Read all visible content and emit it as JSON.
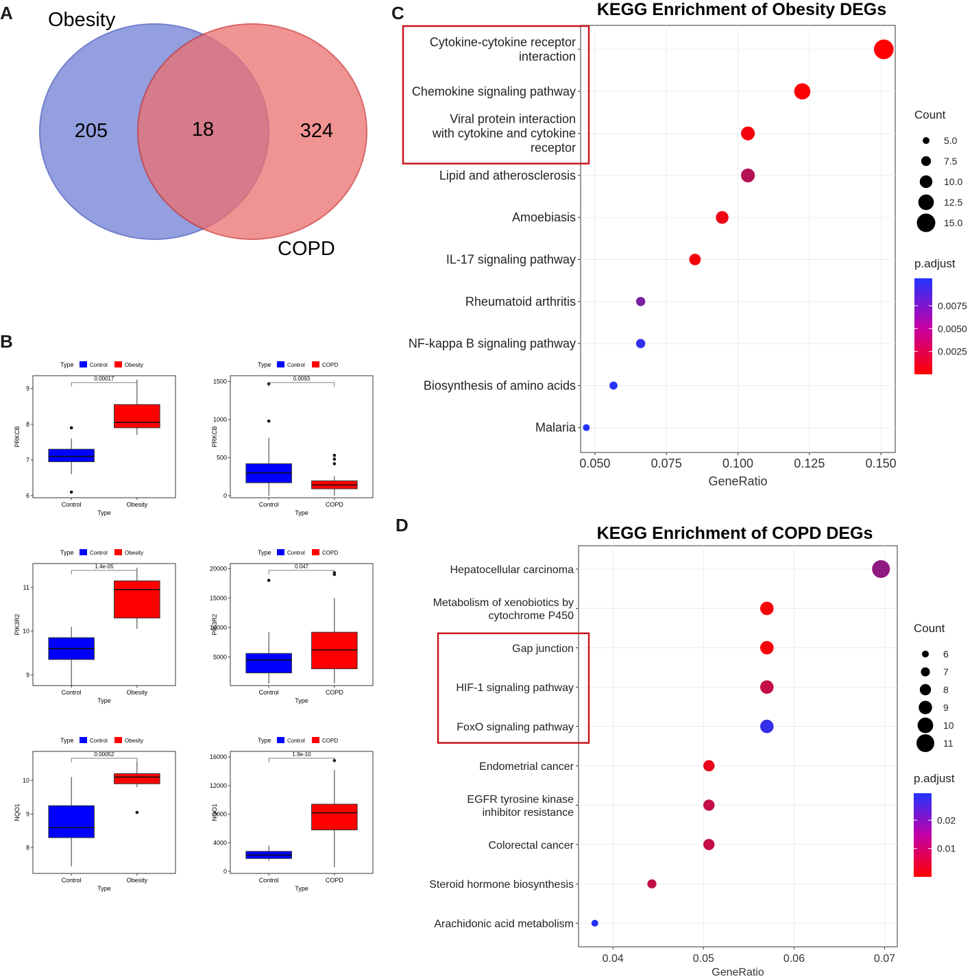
{
  "panels": {
    "A": "A",
    "B": "B",
    "C": "C",
    "D": "D"
  },
  "venn": {
    "labels": {
      "left": "Obesity",
      "right": "COPD"
    },
    "counts": {
      "left_only": "205",
      "overlap": "18",
      "right_only": "324"
    },
    "colors": {
      "left": "#6f7fd4",
      "right": "#ec6f6f"
    }
  },
  "boxplots": [
    {
      "gene": "PRKCB",
      "groups": [
        "Control",
        "Obesity"
      ],
      "xlabel": "Type",
      "legend_title": "Type",
      "legend_items": [
        "Control",
        "Obesity"
      ],
      "pvalue": "0.00017",
      "ylim": [
        6,
        9.3
      ],
      "ticks": [
        "6",
        "7",
        "8",
        "9"
      ],
      "tick_values": [
        6,
        7,
        8,
        9
      ],
      "boxes": [
        {
          "q1": 6.95,
          "med": 7.1,
          "q3": 7.3,
          "lo": 6.6,
          "hi": 7.6,
          "out": [
            7.9,
            6.1
          ]
        },
        {
          "q1": 7.9,
          "med": 8.05,
          "q3": 8.55,
          "lo": 7.7,
          "hi": 9.25,
          "out": []
        }
      ]
    },
    {
      "gene": "PRKCB",
      "groups": [
        "Control",
        "COPD"
      ],
      "xlabel": "Type",
      "legend_title": "Type",
      "legend_items": [
        "Control",
        "COPD"
      ],
      "pvalue": "0.0093",
      "ylim": [
        0,
        1550
      ],
      "ticks": [
        "0",
        "500",
        "1000",
        "1500"
      ],
      "tick_values": [
        0,
        500,
        1000,
        1500
      ],
      "boxes": [
        {
          "q1": 170,
          "med": 300,
          "q3": 420,
          "lo": 0,
          "hi": 760,
          "out": [
            980,
            1470
          ]
        },
        {
          "q1": 90,
          "med": 140,
          "q3": 195,
          "lo": 0,
          "hi": 260,
          "out": [
            420,
            480,
            530
          ]
        }
      ]
    },
    {
      "gene": "PIK3R2",
      "groups": [
        "Control",
        "Obesity"
      ],
      "xlabel": "Type",
      "legend_title": "Type",
      "legend_items": [
        "Control",
        "Obesity"
      ],
      "pvalue": "1.4e-05",
      "ylim": [
        8.8,
        11.5
      ],
      "ticks": [
        "9",
        "10",
        "11"
      ],
      "tick_values": [
        9,
        10,
        11
      ],
      "boxes": [
        {
          "q1": 9.35,
          "med": 9.6,
          "q3": 9.85,
          "lo": 8.75,
          "hi": 10.1,
          "out": []
        },
        {
          "q1": 10.3,
          "med": 10.95,
          "q3": 11.15,
          "lo": 10.05,
          "hi": 11.45,
          "out": []
        }
      ]
    },
    {
      "gene": "PIK3R2",
      "groups": [
        "Control",
        "COPD"
      ],
      "xlabel": "Type",
      "legend_title": "Type",
      "legend_items": [
        "Control",
        "COPD"
      ],
      "pvalue": "0.047",
      "ylim": [
        500,
        20500
      ],
      "ticks": [
        "5000",
        "10000",
        "15000",
        "20000"
      ],
      "tick_values": [
        5000,
        10000,
        15000,
        20000
      ],
      "boxes": [
        {
          "q1": 2300,
          "med": 4500,
          "q3": 5600,
          "lo": 500,
          "hi": 9200,
          "out": [
            18000
          ]
        },
        {
          "q1": 3000,
          "med": 6200,
          "q3": 9200,
          "lo": 500,
          "hi": 15000,
          "out": [
            19000,
            19300
          ]
        }
      ]
    },
    {
      "gene": "NQO1",
      "groups": [
        "Control",
        "Obesity"
      ],
      "xlabel": "Type",
      "legend_title": "Type",
      "legend_items": [
        "Control",
        "Obesity"
      ],
      "pvalue": "0.00052",
      "ylim": [
        7.3,
        10.8
      ],
      "ticks": [
        "8",
        "9",
        "10"
      ],
      "tick_values": [
        8,
        9,
        10
      ],
      "boxes": [
        {
          "q1": 8.3,
          "med": 8.6,
          "q3": 9.25,
          "lo": 7.45,
          "hi": 10.1,
          "out": []
        },
        {
          "q1": 9.9,
          "med": 10.1,
          "q3": 10.2,
          "lo": 9.8,
          "hi": 10.55,
          "out": [
            9.05
          ]
        }
      ]
    },
    {
      "gene": "NQO1",
      "groups": [
        "Control",
        "COPD"
      ],
      "xlabel": "Type",
      "legend_title": "Type",
      "legend_items": [
        "Control",
        "COPD"
      ],
      "pvalue": "1.9e-10",
      "ylim": [
        0,
        16500
      ],
      "ticks": [
        "0",
        "4000",
        "8000",
        "12000",
        "16000"
      ],
      "tick_values": [
        0,
        4000,
        8000,
        12000,
        16000
      ],
      "boxes": [
        {
          "q1": 1800,
          "med": 2300,
          "q3": 2800,
          "lo": 1500,
          "hi": 3600,
          "out": []
        },
        {
          "q1": 5800,
          "med": 8200,
          "q3": 9400,
          "lo": 600,
          "hi": 14200,
          "out": [
            15500
          ]
        }
      ]
    }
  ],
  "chart_data": [
    {
      "type": "scatter",
      "title": "KEGG Enrichment of Obesity DEGs",
      "xlabel": "GeneRatio",
      "xlim": [
        0.045,
        0.155
      ],
      "xticks": [
        "0.050",
        "0.075",
        "0.100",
        "0.125",
        "0.150"
      ],
      "xtick_values": [
        0.05,
        0.075,
        0.1,
        0.125,
        0.15
      ],
      "categories": [
        {
          "label": [
            "Cytokine-cytokine receptor",
            "interaction"
          ],
          "x": 0.151,
          "count": 16,
          "padj": 0.0
        },
        {
          "label": [
            "Chemokine signaling pathway"
          ],
          "x": 0.1225,
          "count": 13,
          "padj": 0.0002
        },
        {
          "label": [
            "Viral protein interaction",
            "with cytokine and cytokine",
            "receptor"
          ],
          "x": 0.1035,
          "count": 11,
          "padj": 0.0005
        },
        {
          "label": [
            "Lipid and atherosclerosis"
          ],
          "x": 0.1035,
          "count": 11,
          "padj": 0.0035
        },
        {
          "label": [
            "Amoebiasis"
          ],
          "x": 0.0945,
          "count": 10,
          "padj": 0.0008
        },
        {
          "label": [
            "IL-17 signaling pathway"
          ],
          "x": 0.085,
          "count": 9,
          "padj": 0.0005
        },
        {
          "label": [
            "Rheumatoid arthritis"
          ],
          "x": 0.066,
          "count": 7,
          "padj": 0.0065
        },
        {
          "label": [
            "NF-kappa B signaling pathway"
          ],
          "x": 0.066,
          "count": 7,
          "padj": 0.0098
        },
        {
          "label": [
            "Biosynthesis of amino acids"
          ],
          "x": 0.0565,
          "count": 6,
          "padj": 0.0102
        },
        {
          "label": [
            "Malaria"
          ],
          "x": 0.047,
          "count": 5,
          "padj": 0.0105
        }
      ],
      "highlight_box_rows": [
        0,
        2
      ],
      "size_legend": {
        "title": "Count",
        "values": [
          "5.0",
          "7.5",
          "10.0",
          "12.5",
          "15.0"
        ],
        "sizes": [
          5,
          7.5,
          10,
          12.5,
          15
        ]
      },
      "color_legend": {
        "title": "p.adjust",
        "ticks": [
          "0.0075",
          "0.0050",
          "0.0025"
        ],
        "tick_values": [
          0.0075,
          0.005,
          0.0025
        ],
        "range": [
          0,
          0.0105
        ],
        "low_color": "#ff0000",
        "high_color": "#2233ff"
      }
    },
    {
      "type": "scatter",
      "title": "KEGG Enrichment of COPD DEGs",
      "xlabel": "GeneRatio",
      "xlim": [
        0.0362,
        0.0714
      ],
      "xticks": [
        "0.04",
        "0.05",
        "0.06",
        "0.07"
      ],
      "xtick_values": [
        0.04,
        0.05,
        0.06,
        0.07
      ],
      "categories": [
        {
          "label": [
            "Hepatocellular carcinoma"
          ],
          "x": 0.0696,
          "count": 11,
          "padj": 0.015
        },
        {
          "label": [
            "Metabolism of xenobiotics by",
            "cytochrome P450"
          ],
          "x": 0.057,
          "count": 9,
          "padj": 0.001
        },
        {
          "label": [
            "Gap junction"
          ],
          "x": 0.057,
          "count": 9,
          "padj": 0.001
        },
        {
          "label": [
            "HIF-1 signaling pathway"
          ],
          "x": 0.057,
          "count": 9,
          "padj": 0.008
        },
        {
          "label": [
            "FoxO signaling pathway"
          ],
          "x": 0.057,
          "count": 9,
          "padj": 0.027
        },
        {
          "label": [
            "Endometrial cancer"
          ],
          "x": 0.0506,
          "count": 8,
          "padj": 0.003
        },
        {
          "label": [
            "EGFR tyrosine kinase",
            "inhibitor resistance"
          ],
          "x": 0.0506,
          "count": 8,
          "padj": 0.008
        },
        {
          "label": [
            "Colorectal cancer"
          ],
          "x": 0.0506,
          "count": 8,
          "padj": 0.008
        },
        {
          "label": [
            "Steroid hormone biosynthesis"
          ],
          "x": 0.0443,
          "count": 7,
          "padj": 0.008
        },
        {
          "label": [
            "Arachidonic acid metabolism"
          ],
          "x": 0.038,
          "count": 6,
          "padj": 0.029
        }
      ],
      "highlight_box_rows": [
        2,
        4
      ],
      "size_legend": {
        "title": "Count",
        "values": [
          "6",
          "7",
          "8",
          "9",
          "10",
          "11"
        ],
        "sizes": [
          6,
          7,
          8,
          9,
          10,
          11
        ]
      },
      "color_legend": {
        "title": "p.adjust",
        "ticks": [
          "0.02",
          "0.01"
        ],
        "tick_values": [
          0.02,
          0.01
        ],
        "range": [
          0,
          0.0295
        ],
        "low_color": "#ff0000",
        "high_color": "#2233ff"
      }
    }
  ]
}
